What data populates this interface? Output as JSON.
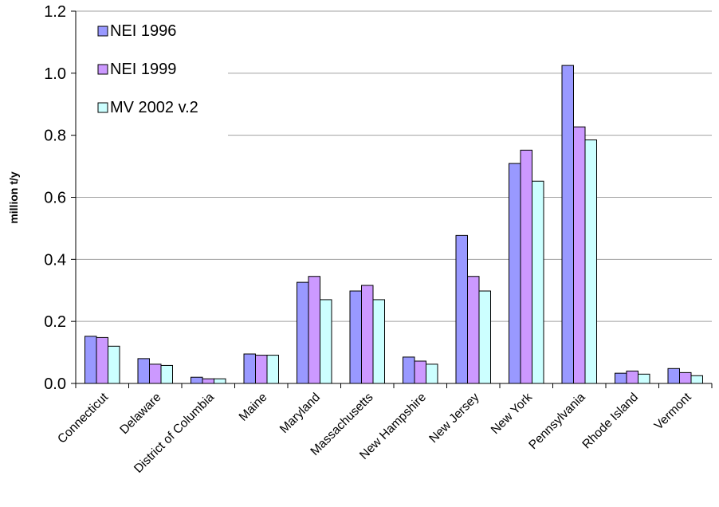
{
  "chart_data": {
    "type": "bar",
    "ylabel": "million t/y",
    "xlabel": "",
    "ylim": [
      0,
      1.2
    ],
    "yticks": [
      0.0,
      0.2,
      0.4,
      0.6,
      0.8,
      1.0,
      1.2
    ],
    "ytick_labels": [
      "0.0",
      "0.2",
      "0.4",
      "0.6",
      "0.8",
      "1.0",
      "1.2"
    ],
    "grid": true,
    "legend_position": "top-left",
    "categories": [
      "Connecticut",
      "Delaware",
      "District of Columbia",
      "Maine",
      "Maryland",
      "Massachusetts",
      "New Hampshire",
      "New Jersey",
      "New York",
      "Pennsylvania",
      "Rhode Island",
      "Vermont"
    ],
    "series": [
      {
        "name": "NEI 1996",
        "color": "#9999ff",
        "values": [
          0.152,
          0.08,
          0.02,
          0.095,
          0.326,
          0.298,
          0.085,
          0.477,
          0.709,
          1.025,
          0.033,
          0.048
        ]
      },
      {
        "name": "NEI 1999",
        "color": "#cc99ff",
        "values": [
          0.148,
          0.062,
          0.015,
          0.091,
          0.345,
          0.316,
          0.072,
          0.345,
          0.752,
          0.827,
          0.04,
          0.035
        ]
      },
      {
        "name": "MV 2002 v.2",
        "color": "#ccffff",
        "values": [
          0.12,
          0.058,
          0.015,
          0.091,
          0.27,
          0.27,
          0.062,
          0.298,
          0.652,
          0.785,
          0.03,
          0.025
        ]
      }
    ]
  }
}
